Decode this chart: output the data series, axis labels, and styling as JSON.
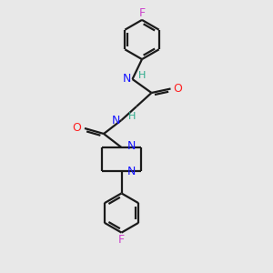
{
  "background_color": "#e8e8e8",
  "bond_color": "#1a1a1a",
  "N_color": "#1414ff",
  "O_color": "#ff2020",
  "F_color": "#cc44cc",
  "H_color": "#2aaa8a",
  "line_width": 1.6,
  "xlim": [
    0,
    10
  ],
  "ylim": [
    0,
    10
  ],
  "figsize": [
    3.0,
    3.0
  ],
  "dpi": 100
}
